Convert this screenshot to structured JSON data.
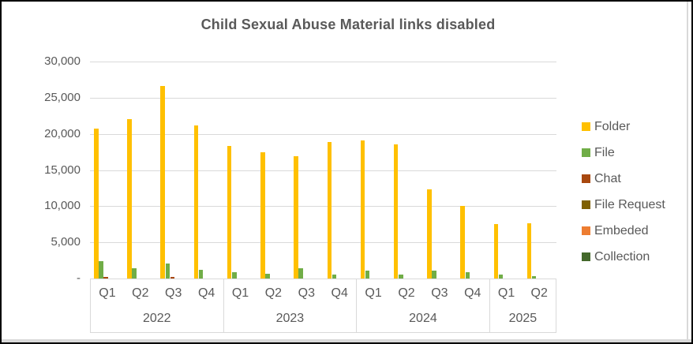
{
  "window": {
    "frame_border_color": "#000000",
    "background_color": "#ffffff",
    "sheet_edge_color": "#d9d9d9"
  },
  "chart_data": {
    "type": "bar",
    "title": "Child Sexual Abuse Material links disabled",
    "title_color": "#595959",
    "gridline_color": "#d9d9d9",
    "grid": true,
    "legend_position": "right",
    "ylim": [
      0,
      30000
    ],
    "y_tick_interval": 5000,
    "y_tick_labels": [
      "30,000",
      "25,000",
      "20,000",
      "15,000",
      "10,000",
      "5,000",
      "-"
    ],
    "groups": [
      {
        "year": "2022",
        "quarters": [
          "Q1",
          "Q2",
          "Q3",
          "Q4"
        ]
      },
      {
        "year": "2023",
        "quarters": [
          "Q1",
          "Q2",
          "Q3",
          "Q4"
        ]
      },
      {
        "year": "2024",
        "quarters": [
          "Q1",
          "Q2",
          "Q3",
          "Q4"
        ]
      },
      {
        "year": "2025",
        "quarters": [
          "Q1",
          "Q2"
        ]
      }
    ],
    "categories": [
      "2022 Q1",
      "2022 Q2",
      "2022 Q3",
      "2022 Q4",
      "2023 Q1",
      "2023 Q2",
      "2023 Q3",
      "2023 Q4",
      "2024 Q1",
      "2024 Q2",
      "2024 Q3",
      "2024 Q4",
      "2025 Q1",
      "2025 Q2"
    ],
    "series": [
      {
        "name": "Folder",
        "color": "#FFC000",
        "values": [
          20700,
          22000,
          26600,
          21200,
          18300,
          17500,
          16900,
          18900,
          19100,
          18500,
          12300,
          10000,
          7500,
          7600
        ]
      },
      {
        "name": "File",
        "color": "#70AD47",
        "values": [
          2400,
          1450,
          2050,
          1200,
          900,
          650,
          1400,
          500,
          1100,
          550,
          1050,
          850,
          600,
          350
        ]
      },
      {
        "name": "Chat",
        "color": "#A8480F",
        "values": [
          200,
          0,
          200,
          0,
          0,
          0,
          0,
          0,
          0,
          0,
          0,
          0,
          0,
          0
        ]
      },
      {
        "name": "File Request",
        "color": "#7F6000",
        "values": [
          0,
          0,
          0,
          0,
          0,
          0,
          0,
          0,
          0,
          0,
          0,
          0,
          0,
          0
        ]
      },
      {
        "name": "Embeded",
        "color": "#ED7D31",
        "values": [
          0,
          0,
          0,
          0,
          0,
          0,
          0,
          0,
          0,
          0,
          0,
          0,
          0,
          0
        ]
      },
      {
        "name": "Collection",
        "color": "#44682B",
        "values": [
          0,
          0,
          0,
          0,
          0,
          0,
          0,
          0,
          0,
          0,
          0,
          0,
          0,
          0
        ]
      }
    ]
  }
}
